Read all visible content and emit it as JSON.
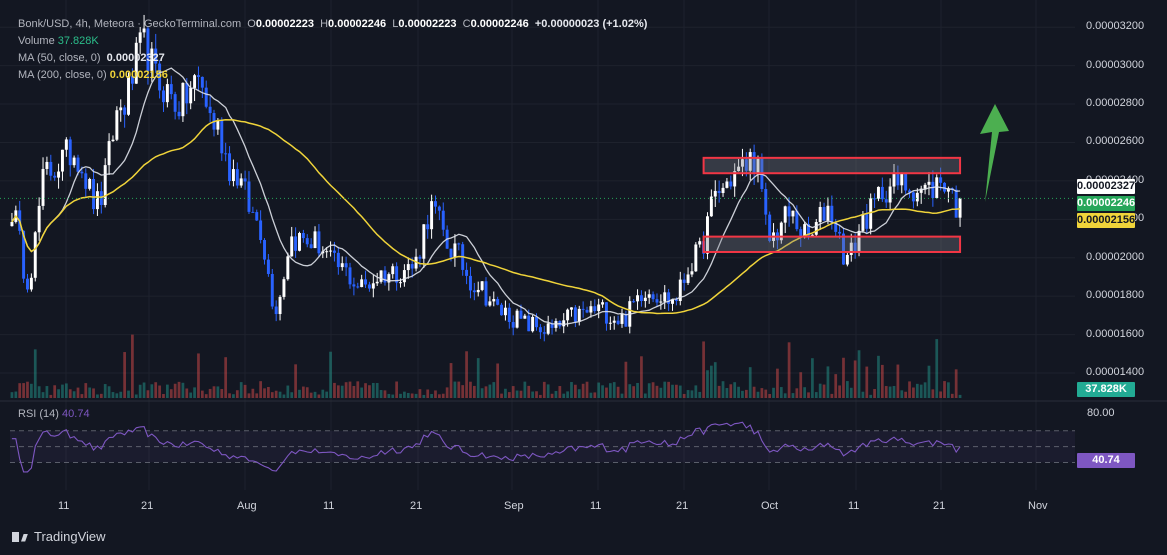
{
  "legend": {
    "symbol": "Bonk/USD, 4h, Meteora · GeckoTerminal.com",
    "o_label": "O",
    "o_value": "0.00002223",
    "h_label": "H",
    "h_value": "0.00002246",
    "l_label": "L",
    "l_value": "0.00002223",
    "c_label": "C",
    "c_value": "0.00002246",
    "change": "+0.00000023 (+1.02%)",
    "volume_label": "Volume",
    "volume_value": "37.828K",
    "ma50_label": "MA (50, close, 0)",
    "ma50_value": "0.00002327",
    "ma200_label": "MA (200, close, 0)",
    "ma200_value": "0.00002156",
    "rsi_label": "RSI (14)",
    "rsi_value": "40.74"
  },
  "badges": {
    "ma50": "0.00002327",
    "close": "0.00002246",
    "ma200": "0.00002156",
    "volume": "37.828K",
    "rsi": "40.74"
  },
  "colors": {
    "background": "#131722",
    "up": "#ffffff",
    "down": "#2962ff",
    "ma50": "#e0e3eb",
    "ma200": "#f0d43a",
    "rsi": "#7e57c2",
    "zone_border": "#f23645",
    "arrow": "#4caf50",
    "vol_up": "#26a69a",
    "vol_down": "#ef5350"
  },
  "branding": "TradingView",
  "chart_data": {
    "type": "candlestick",
    "price_axis": {
      "ticks": [
        "0.00003200",
        "0.00003000",
        "0.00002800",
        "0.00002600",
        "0.00002400",
        "0.00002200",
        "0.00002000",
        "0.00001800",
        "0.00001600",
        "0.00001400"
      ],
      "tick_values": [
        3.2e-05,
        3e-05,
        2.8e-05,
        2.6e-05,
        2.4e-05,
        2.2e-05,
        2e-05,
        1.8e-05,
        1.6e-05,
        1.4e-05
      ],
      "range": [
        1.27e-05,
        3.3e-05
      ]
    },
    "rsi_axis": {
      "ticks": [
        "80.00"
      ],
      "upper_band": 70,
      "mid_band": 50,
      "lower_band": 30,
      "range": [
        0,
        100
      ]
    },
    "time_axis": [
      "11",
      "21",
      "Aug",
      "11",
      "21",
      "Sep",
      "11",
      "21",
      "Oct",
      "11",
      "21",
      "Nov"
    ],
    "close_anchors": [
      [
        0,
        2.25e-05
      ],
      [
        4,
        1.9e-05
      ],
      [
        9,
        2.45e-05
      ],
      [
        16,
        2.55e-05
      ],
      [
        22,
        2.28e-05
      ],
      [
        28,
        2.78e-05
      ],
      [
        34,
        3.1e-05
      ],
      [
        38,
        2.9e-05
      ],
      [
        43,
        2.8e-05
      ],
      [
        48,
        2.92e-05
      ],
      [
        52,
        2.7e-05
      ],
      [
        57,
        2.45e-05
      ],
      [
        63,
        2.2e-05
      ],
      [
        68,
        1.75e-05
      ],
      [
        72,
        2.1e-05
      ],
      [
        78,
        2.08e-05
      ],
      [
        84,
        1.95e-05
      ],
      [
        90,
        1.85e-05
      ],
      [
        96,
        1.92e-05
      ],
      [
        103,
        1.95e-05
      ],
      [
        108,
        2.25e-05
      ],
      [
        113,
        2.05e-05
      ],
      [
        119,
        1.87e-05
      ],
      [
        126,
        1.72e-05
      ],
      [
        133,
        1.65e-05
      ],
      [
        139,
        1.62e-05
      ],
      [
        145,
        1.7e-05
      ],
      [
        151,
        1.73e-05
      ],
      [
        157,
        1.68e-05
      ],
      [
        163,
        1.84e-05
      ],
      [
        170,
        1.78e-05
      ],
      [
        176,
        2e-05
      ],
      [
        182,
        2.35e-05
      ],
      [
        187,
        2.45e-05
      ],
      [
        191,
        2.52e-05
      ],
      [
        195,
        2.1e-05
      ],
      [
        200,
        2.22e-05
      ],
      [
        205,
        2.1e-05
      ],
      [
        210,
        2.26e-05
      ],
      [
        215,
        2e-05
      ],
      [
        220,
        2.22e-05
      ],
      [
        225,
        2.37e-05
      ],
      [
        230,
        2.38e-05
      ],
      [
        235,
        2.35e-05
      ],
      [
        240,
        2.4e-05
      ],
      [
        244,
        2.25e-05
      ]
    ],
    "candle_count": 245,
    "resistance_zone": [
      2.44e-05,
      2.52e-05
    ],
    "support_zone": [
      2.03e-05,
      2.11e-05
    ],
    "zone_index_range": [
      179,
      240
    ]
  }
}
